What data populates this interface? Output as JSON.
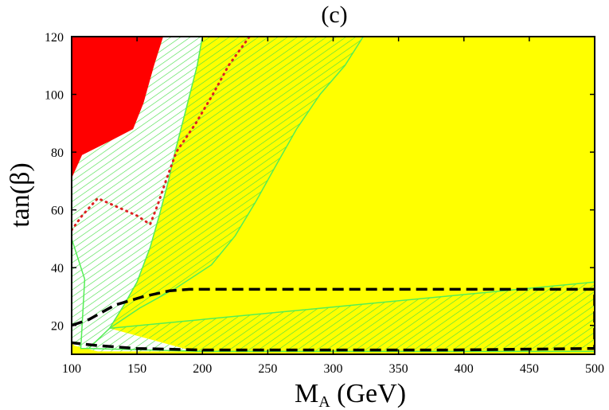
{
  "chart_data": {
    "type": "area",
    "title": "(c)",
    "xlabel": {
      "main": "M",
      "sub": "A",
      "rest": " (GeV)"
    },
    "ylabel": "tan(β)",
    "xlim": [
      100,
      500
    ],
    "ylim": [
      10,
      120
    ],
    "xticks": [
      100,
      150,
      200,
      250,
      300,
      350,
      400,
      450,
      500
    ],
    "yticks": [
      20,
      40,
      60,
      80,
      100,
      120
    ],
    "grid": false,
    "colors": {
      "red": "#ff0000",
      "yellow": "#ffff00",
      "hatch": "#44dd44",
      "boundary": "#55ee55",
      "red_dotted": "#dd2222",
      "black_dashed": "#000000"
    },
    "regions": [
      {
        "id": "yellow-background",
        "fill": "yellow",
        "points": [
          [
            100,
            10
          ],
          [
            500,
            10
          ],
          [
            500,
            120
          ],
          [
            100,
            120
          ]
        ]
      },
      {
        "id": "hatched-left-white",
        "fill": "white",
        "hatch": true,
        "points": [
          [
            100,
            120
          ],
          [
            170,
            120
          ],
          [
            153,
            95
          ],
          [
            128,
            83
          ],
          [
            108,
            78
          ],
          [
            100,
            71
          ],
          [
            100,
            50
          ],
          [
            110,
            36
          ],
          [
            107,
            12
          ],
          [
            113,
            12
          ],
          [
            129,
            19
          ],
          [
            190,
            11.5
          ],
          [
            200,
            11
          ],
          [
            120,
            11
          ],
          [
            102,
            13
          ],
          [
            100,
            14
          ],
          [
            100,
            10
          ]
        ]
      },
      {
        "id": "hatched-left-white-main",
        "fill": "white",
        "hatch": true,
        "points": [
          [
            170,
            120
          ],
          [
            200,
            120
          ],
          [
            196,
            110
          ],
          [
            187,
            94
          ],
          [
            179,
            80
          ],
          [
            174,
            70
          ],
          [
            167,
            58
          ],
          [
            160,
            47
          ],
          [
            150,
            35
          ],
          [
            140,
            27
          ],
          [
            129,
            19
          ],
          [
            113,
            12
          ],
          [
            107,
            12
          ],
          [
            110,
            36
          ],
          [
            100,
            50
          ],
          [
            100,
            71
          ],
          [
            108,
            78
          ],
          [
            128,
            83
          ],
          [
            153,
            95
          ]
        ]
      },
      {
        "id": "hatched-yellow-wedge",
        "fill": "yellow",
        "hatch": true,
        "points": [
          [
            255,
            120
          ],
          [
            323,
            120
          ],
          [
            309,
            110
          ],
          [
            290,
            100
          ],
          [
            272,
            88
          ],
          [
            257,
            76
          ],
          [
            241,
            63
          ],
          [
            225,
            51
          ],
          [
            207,
            41
          ],
          [
            180,
            33
          ],
          [
            152,
            26
          ],
          [
            129,
            19
          ],
          [
            140,
            27
          ],
          [
            150,
            35
          ],
          [
            160,
            47
          ],
          [
            167,
            58
          ],
          [
            174,
            70
          ],
          [
            179,
            80
          ],
          [
            187,
            94
          ],
          [
            196,
            110
          ],
          [
            200,
            120
          ]
        ]
      },
      {
        "id": "hatched-yellow-wedge-core",
        "fill": "yellow",
        "hatch": true,
        "points": [
          [
            255,
            120
          ],
          [
            240,
            95
          ],
          [
            228,
            85
          ],
          [
            213,
            72
          ],
          [
            196,
            56
          ],
          [
            178,
            44
          ],
          [
            155,
            32
          ],
          [
            129,
            19
          ],
          [
            152,
            26
          ],
          [
            180,
            33
          ],
          [
            207,
            41
          ],
          [
            225,
            51
          ],
          [
            241,
            63
          ],
          [
            257,
            76
          ],
          [
            272,
            88
          ],
          [
            290,
            100
          ],
          [
            309,
            110
          ],
          [
            323,
            120
          ]
        ]
      },
      {
        "id": "hatched-bottom-wedge",
        "fill": "yellow",
        "hatch": true,
        "points": [
          [
            129,
            19
          ],
          [
            500,
            35
          ],
          [
            500,
            12
          ],
          [
            200,
            11
          ]
        ]
      },
      {
        "id": "red-region",
        "fill": "red",
        "points": [
          [
            100,
            120
          ],
          [
            170,
            120
          ],
          [
            163,
            110
          ],
          [
            155,
            97
          ],
          [
            147,
            88
          ],
          [
            130,
            84
          ],
          [
            108,
            79
          ],
          [
            100,
            71
          ]
        ]
      }
    ],
    "lines": [
      {
        "id": "red-dotted-line",
        "style": "dotted",
        "color": "red_dotted",
        "points": [
          [
            100,
            53
          ],
          [
            108,
            58
          ],
          [
            120,
            64
          ],
          [
            135,
            61
          ],
          [
            150,
            58
          ],
          [
            160,
            55
          ],
          [
            166,
            62
          ],
          [
            172,
            70
          ],
          [
            180,
            80
          ],
          [
            195,
            90
          ],
          [
            208,
            100
          ],
          [
            220,
            110
          ],
          [
            236,
            120
          ]
        ]
      },
      {
        "id": "black-dashed-line",
        "style": "dashed",
        "color": "black_dashed",
        "points": [
          [
            100,
            20
          ],
          [
            113,
            22
          ],
          [
            133,
            27
          ],
          [
            155,
            30
          ],
          [
            175,
            32
          ],
          [
            190,
            32.5
          ],
          [
            500,
            32.5
          ],
          [
            500,
            12
          ],
          [
            390,
            11.5
          ],
          [
            300,
            11.5
          ],
          [
            200,
            11.5
          ],
          [
            150,
            12
          ],
          [
            120,
            13
          ],
          [
            100,
            14
          ]
        ]
      }
    ],
    "boundaries": [
      {
        "id": "boundary-left",
        "points": [
          [
            100,
            50
          ],
          [
            110,
            36
          ],
          [
            107,
            12
          ],
          [
            113,
            12
          ],
          [
            129,
            19
          ]
        ]
      },
      {
        "id": "boundary-wedge-left",
        "points": [
          [
            129,
            19
          ],
          [
            140,
            27
          ],
          [
            150,
            35
          ],
          [
            160,
            47
          ],
          [
            167,
            58
          ],
          [
            174,
            70
          ],
          [
            179,
            80
          ],
          [
            187,
            94
          ],
          [
            196,
            110
          ],
          [
            200,
            120
          ]
        ]
      },
      {
        "id": "boundary-wedge-right",
        "points": [
          [
            129,
            19
          ],
          [
            152,
            26
          ],
          [
            180,
            33
          ],
          [
            207,
            41
          ],
          [
            225,
            51
          ],
          [
            241,
            63
          ],
          [
            257,
            76
          ],
          [
            272,
            88
          ],
          [
            290,
            100
          ],
          [
            309,
            110
          ],
          [
            323,
            120
          ]
        ]
      },
      {
        "id": "boundary-bottom-upper",
        "points": [
          [
            129,
            19
          ],
          [
            500,
            35
          ]
        ]
      },
      {
        "id": "boundary-bottom-lower",
        "points": [
          [
            113,
            12
          ],
          [
            200,
            11
          ],
          [
            500,
            11
          ]
        ]
      }
    ]
  }
}
